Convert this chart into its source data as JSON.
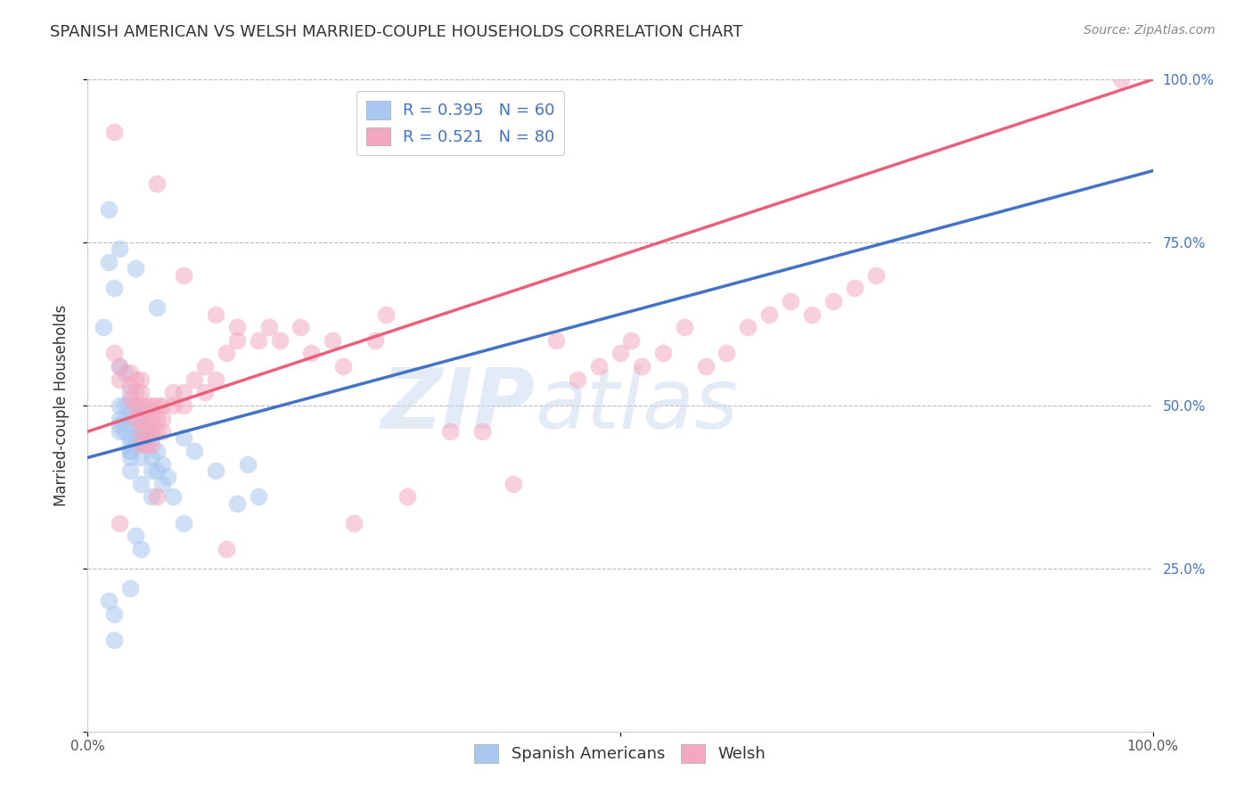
{
  "title": "SPANISH AMERICAN VS WELSH MARRIED-COUPLE HOUSEHOLDS CORRELATION CHART",
  "source": "Source: ZipAtlas.com",
  "ylabel": "Married-couple Households",
  "xlim": [
    0,
    1
  ],
  "ylim": [
    0,
    1
  ],
  "blue_R": 0.395,
  "blue_N": 60,
  "pink_R": 0.521,
  "pink_N": 80,
  "blue_color": "#A8C8F0",
  "pink_color": "#F4A8C0",
  "blue_line_color": "#4472C4",
  "pink_line_color": "#E8607A",
  "blue_scatter": [
    [
      0.015,
      0.62
    ],
    [
      0.02,
      0.72
    ],
    [
      0.025,
      0.68
    ],
    [
      0.03,
      0.56
    ],
    [
      0.03,
      0.5
    ],
    [
      0.03,
      0.48
    ],
    [
      0.03,
      0.47
    ],
    [
      0.03,
      0.46
    ],
    [
      0.035,
      0.55
    ],
    [
      0.035,
      0.5
    ],
    [
      0.035,
      0.48
    ],
    [
      0.035,
      0.46
    ],
    [
      0.04,
      0.52
    ],
    [
      0.04,
      0.49
    ],
    [
      0.04,
      0.47
    ],
    [
      0.04,
      0.45
    ],
    [
      0.04,
      0.44
    ],
    [
      0.04,
      0.43
    ],
    [
      0.04,
      0.4
    ],
    [
      0.045,
      0.5
    ],
    [
      0.045,
      0.48
    ],
    [
      0.045,
      0.46
    ],
    [
      0.045,
      0.44
    ],
    [
      0.05,
      0.49
    ],
    [
      0.05,
      0.47
    ],
    [
      0.05,
      0.45
    ],
    [
      0.05,
      0.42
    ],
    [
      0.05,
      0.38
    ],
    [
      0.055,
      0.46
    ],
    [
      0.055,
      0.44
    ],
    [
      0.06,
      0.45
    ],
    [
      0.06,
      0.42
    ],
    [
      0.06,
      0.4
    ],
    [
      0.06,
      0.36
    ],
    [
      0.065,
      0.43
    ],
    [
      0.065,
      0.4
    ],
    [
      0.07,
      0.41
    ],
    [
      0.07,
      0.38
    ],
    [
      0.075,
      0.39
    ],
    [
      0.08,
      0.36
    ],
    [
      0.09,
      0.45
    ],
    [
      0.1,
      0.43
    ],
    [
      0.12,
      0.4
    ],
    [
      0.14,
      0.35
    ],
    [
      0.15,
      0.41
    ],
    [
      0.02,
      0.2
    ],
    [
      0.025,
      0.18
    ],
    [
      0.025,
      0.14
    ],
    [
      0.04,
      0.22
    ],
    [
      0.045,
      0.3
    ],
    [
      0.05,
      0.28
    ],
    [
      0.09,
      0.32
    ],
    [
      0.16,
      0.36
    ],
    [
      0.045,
      0.71
    ],
    [
      0.065,
      0.65
    ],
    [
      0.02,
      0.8
    ],
    [
      0.03,
      0.74
    ],
    [
      0.04,
      0.42
    ],
    [
      0.04,
      0.43
    ],
    [
      0.05,
      0.45
    ]
  ],
  "pink_scatter": [
    [
      0.025,
      0.92
    ],
    [
      0.065,
      0.84
    ],
    [
      0.09,
      0.7
    ],
    [
      0.12,
      0.64
    ],
    [
      0.14,
      0.62
    ],
    [
      0.16,
      0.6
    ],
    [
      0.025,
      0.58
    ],
    [
      0.03,
      0.56
    ],
    [
      0.03,
      0.54
    ],
    [
      0.04,
      0.55
    ],
    [
      0.04,
      0.53
    ],
    [
      0.04,
      0.51
    ],
    [
      0.045,
      0.54
    ],
    [
      0.045,
      0.52
    ],
    [
      0.045,
      0.5
    ],
    [
      0.045,
      0.48
    ],
    [
      0.05,
      0.54
    ],
    [
      0.05,
      0.52
    ],
    [
      0.05,
      0.5
    ],
    [
      0.05,
      0.48
    ],
    [
      0.05,
      0.46
    ],
    [
      0.05,
      0.44
    ],
    [
      0.055,
      0.5
    ],
    [
      0.055,
      0.48
    ],
    [
      0.055,
      0.46
    ],
    [
      0.055,
      0.44
    ],
    [
      0.06,
      0.5
    ],
    [
      0.06,
      0.48
    ],
    [
      0.06,
      0.46
    ],
    [
      0.06,
      0.44
    ],
    [
      0.065,
      0.5
    ],
    [
      0.065,
      0.48
    ],
    [
      0.065,
      0.46
    ],
    [
      0.07,
      0.5
    ],
    [
      0.07,
      0.48
    ],
    [
      0.07,
      0.46
    ],
    [
      0.08,
      0.52
    ],
    [
      0.08,
      0.5
    ],
    [
      0.09,
      0.52
    ],
    [
      0.09,
      0.5
    ],
    [
      0.1,
      0.54
    ],
    [
      0.11,
      0.52
    ],
    [
      0.11,
      0.56
    ],
    [
      0.12,
      0.54
    ],
    [
      0.13,
      0.58
    ],
    [
      0.14,
      0.6
    ],
    [
      0.17,
      0.62
    ],
    [
      0.18,
      0.6
    ],
    [
      0.2,
      0.62
    ],
    [
      0.21,
      0.58
    ],
    [
      0.23,
      0.6
    ],
    [
      0.24,
      0.56
    ],
    [
      0.27,
      0.6
    ],
    [
      0.28,
      0.64
    ],
    [
      0.3,
      0.36
    ],
    [
      0.34,
      0.46
    ],
    [
      0.37,
      0.46
    ],
    [
      0.4,
      0.38
    ],
    [
      0.44,
      0.6
    ],
    [
      0.46,
      0.54
    ],
    [
      0.48,
      0.56
    ],
    [
      0.5,
      0.58
    ],
    [
      0.51,
      0.6
    ],
    [
      0.52,
      0.56
    ],
    [
      0.54,
      0.58
    ],
    [
      0.56,
      0.62
    ],
    [
      0.58,
      0.56
    ],
    [
      0.6,
      0.58
    ],
    [
      0.62,
      0.62
    ],
    [
      0.64,
      0.64
    ],
    [
      0.66,
      0.66
    ],
    [
      0.68,
      0.64
    ],
    [
      0.7,
      0.66
    ],
    [
      0.72,
      0.68
    ],
    [
      0.74,
      0.7
    ],
    [
      0.97,
      1.0
    ],
    [
      0.03,
      0.32
    ],
    [
      0.065,
      0.36
    ],
    [
      0.13,
      0.28
    ],
    [
      0.25,
      0.32
    ]
  ],
  "blue_line_x": [
    0.0,
    1.0
  ],
  "blue_line_y": [
    0.42,
    0.86
  ],
  "pink_line_x": [
    0.0,
    1.0
  ],
  "pink_line_y": [
    0.46,
    1.0
  ],
  "watermark_zip": "ZIP",
  "watermark_atlas": "atlas",
  "watermark_color": "#C8D8F0",
  "background_color": "#FFFFFF",
  "grid_color": "#BBBBBB",
  "title_fontsize": 13,
  "source_fontsize": 10,
  "axis_label_fontsize": 12,
  "tick_fontsize": 11,
  "legend_fontsize": 13
}
